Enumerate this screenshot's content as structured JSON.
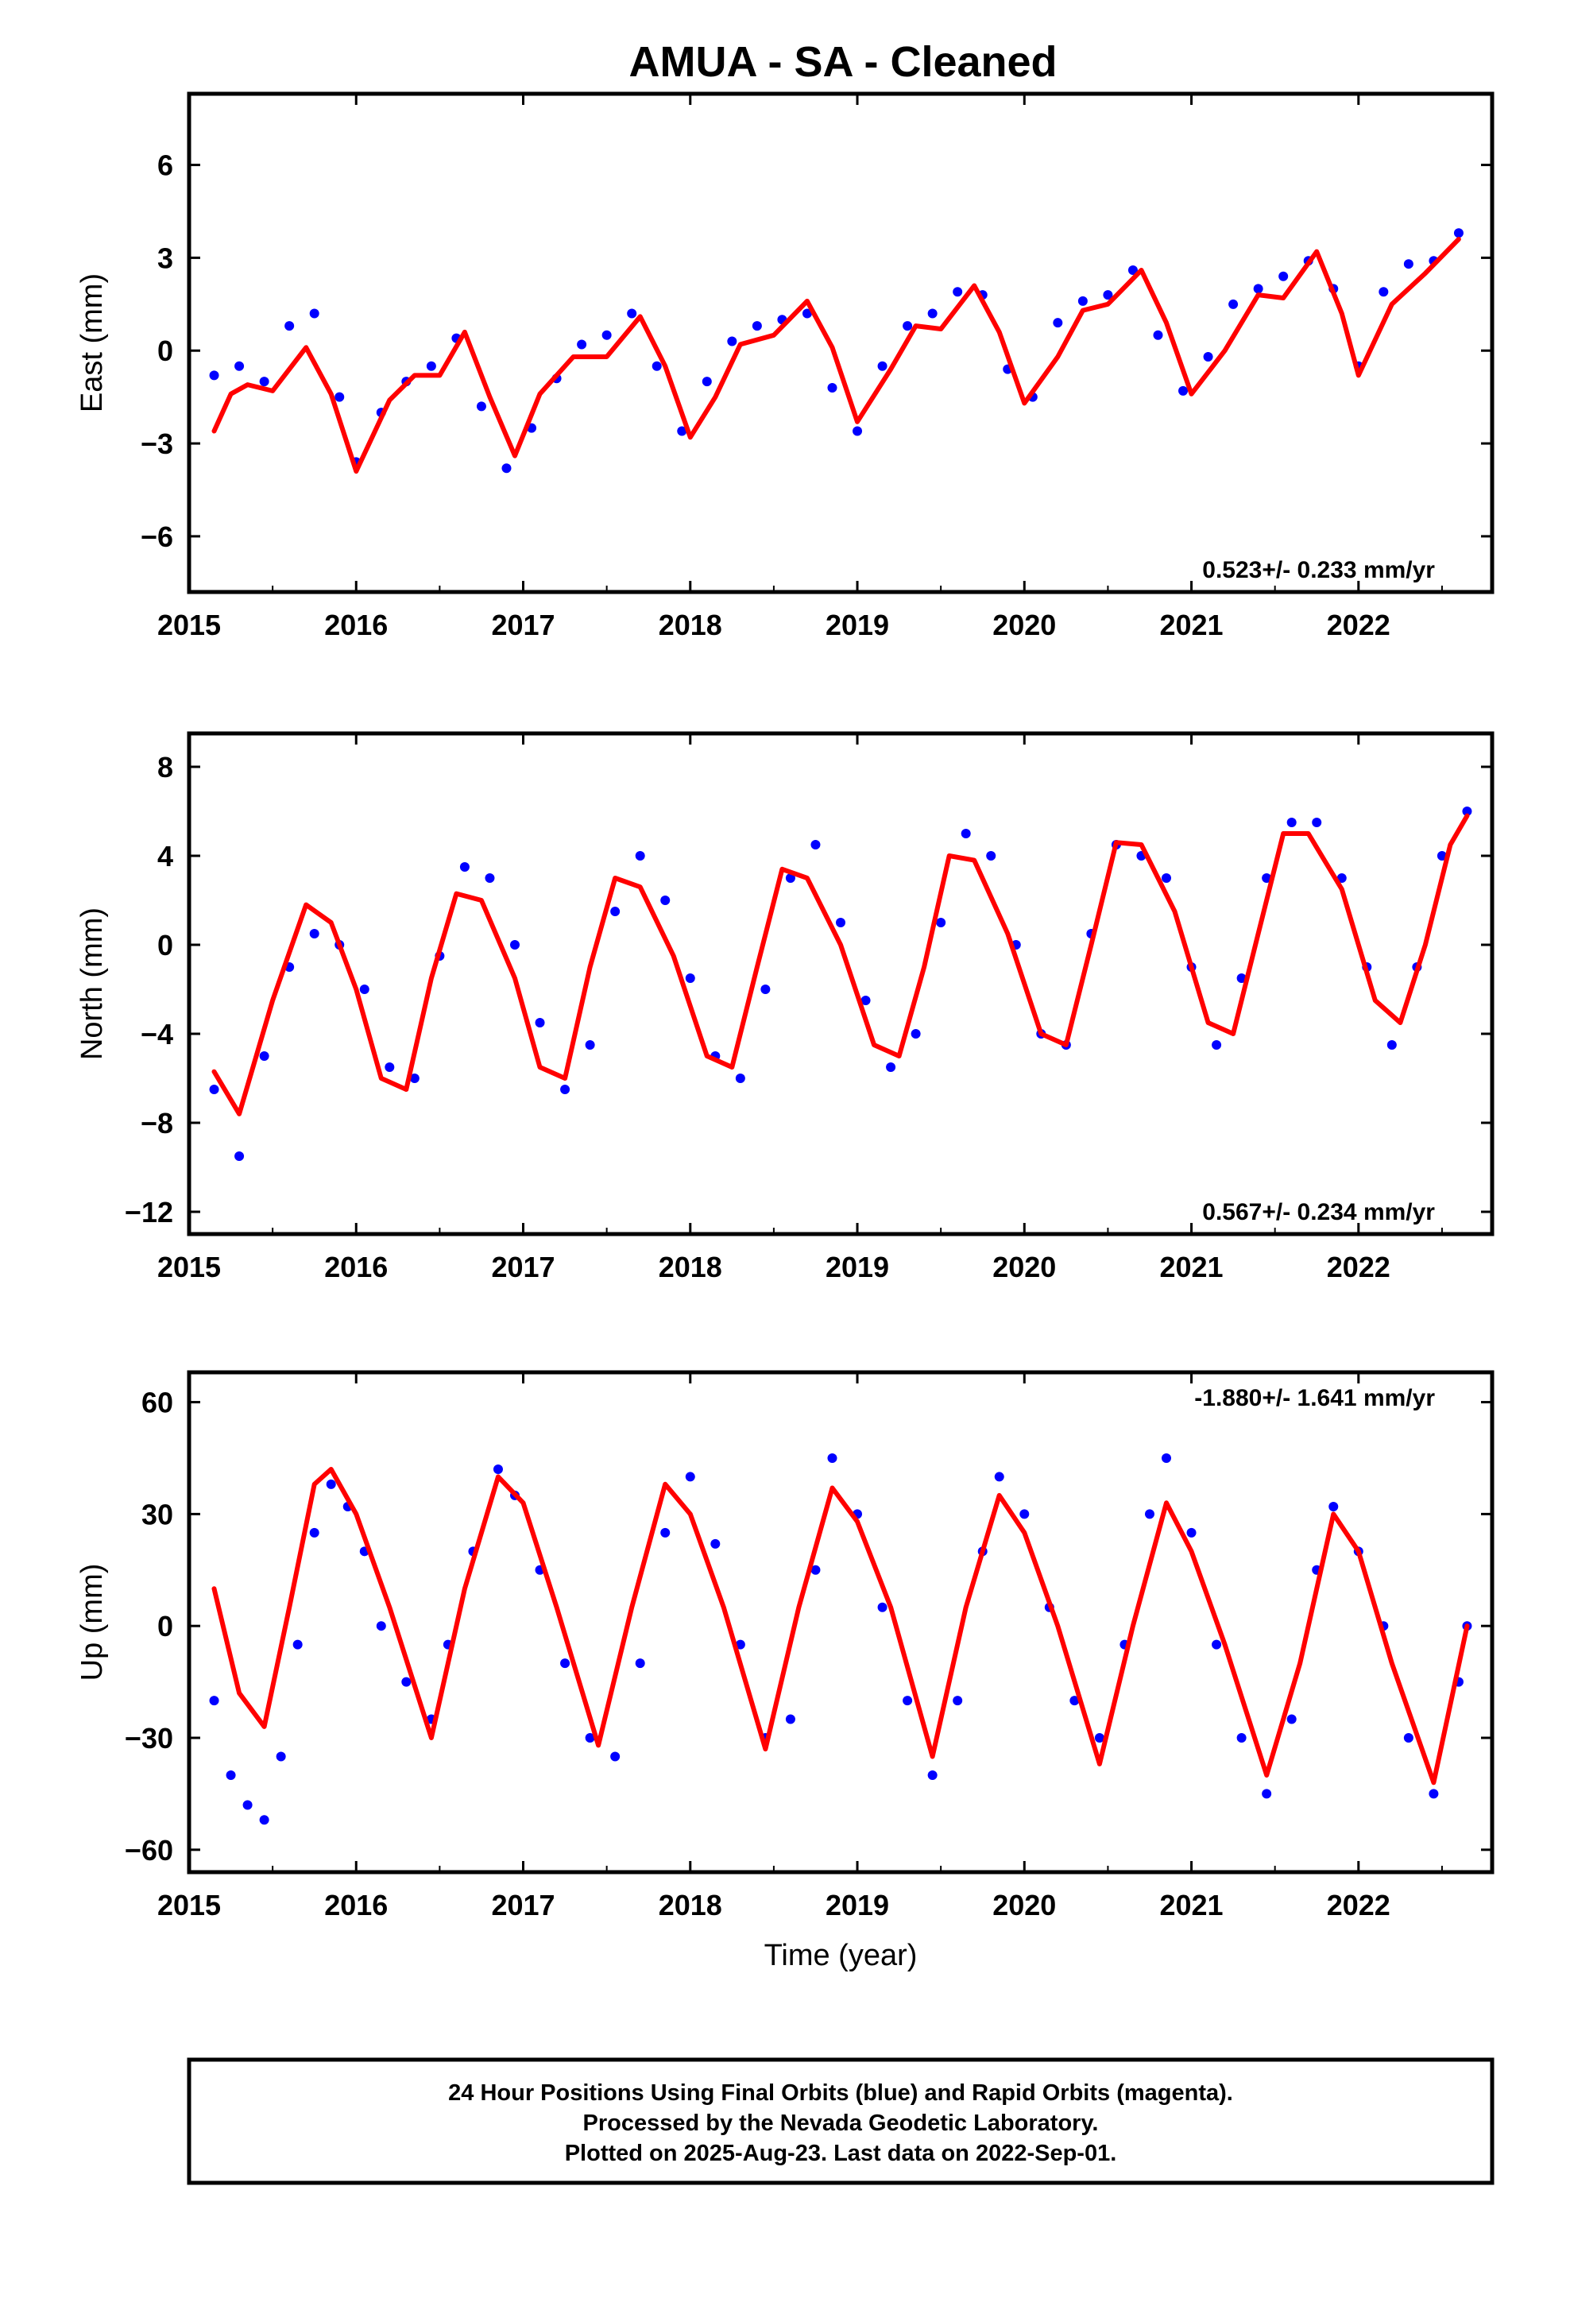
{
  "title": "AMUA  - SA - Cleaned",
  "colors": {
    "points": "#0000ff",
    "fit": "#ff0000",
    "frame": "#000000"
  },
  "chart_data": [
    {
      "type": "scatter",
      "component": "east",
      "ylabel": "East (mm)",
      "xlabel": "",
      "xlim": [
        2015.0,
        2022.8
      ],
      "ylim": [
        -7.8,
        8.3
      ],
      "yticks": [
        "6",
        "3",
        "0",
        "−3",
        "−6"
      ],
      "ytick_values": [
        6,
        3,
        0,
        -3,
        -6
      ],
      "xticks": [
        "2015",
        "2016",
        "2017",
        "2018",
        "2019",
        "2020",
        "2021",
        "2022"
      ],
      "rate": "0.523+/- 0.233 mm/yr",
      "rate_position": "bottom-right",
      "series": [
        {
          "kind": "points",
          "x": [
            2015.15,
            2015.3,
            2015.45,
            2015.6,
            2015.75,
            2015.9,
            2016.0,
            2016.15,
            2016.3,
            2016.45,
            2016.6,
            2016.75,
            2016.9,
            2017.05,
            2017.2,
            2017.35,
            2017.5,
            2017.65,
            2017.8,
            2017.95,
            2018.1,
            2018.25,
            2018.4,
            2018.55,
            2018.7,
            2018.85,
            2019.0,
            2019.15,
            2019.3,
            2019.45,
            2019.6,
            2019.75,
            2019.9,
            2020.05,
            2020.2,
            2020.35,
            2020.5,
            2020.65,
            2020.8,
            2020.95,
            2021.1,
            2021.25,
            2021.4,
            2021.55,
            2021.7,
            2021.85,
            2022.0,
            2022.15,
            2022.3,
            2022.45,
            2022.6
          ],
          "y": [
            -0.8,
            -0.5,
            -1.0,
            0.8,
            1.2,
            -1.5,
            -3.6,
            -2.0,
            -1.0,
            -0.5,
            0.4,
            -1.8,
            -3.8,
            -2.5,
            -0.9,
            0.2,
            0.5,
            1.2,
            -0.5,
            -2.6,
            -1.0,
            0.3,
            0.8,
            1.0,
            1.2,
            -1.2,
            -2.6,
            -0.5,
            0.8,
            1.2,
            1.9,
            1.8,
            -0.6,
            -1.5,
            0.9,
            1.6,
            1.8,
            2.6,
            0.5,
            -1.3,
            -0.2,
            1.5,
            2.0,
            2.4,
            2.9,
            2.0,
            -0.5,
            1.9,
            2.8,
            2.9,
            3.8
          ]
        },
        {
          "kind": "fit",
          "x": [
            2015.15,
            2015.25,
            2015.35,
            2015.5,
            2015.7,
            2015.85,
            2016.0,
            2016.2,
            2016.35,
            2016.5,
            2016.65,
            2016.8,
            2016.95,
            2017.1,
            2017.3,
            2017.5,
            2017.7,
            2017.85,
            2018.0,
            2018.15,
            2018.3,
            2018.5,
            2018.7,
            2018.85,
            2019.0,
            2019.2,
            2019.35,
            2019.5,
            2019.7,
            2019.85,
            2020.0,
            2020.2,
            2020.35,
            2020.5,
            2020.7,
            2020.85,
            2021.0,
            2021.2,
            2021.4,
            2021.55,
            2021.75,
            2021.9,
            2022.0,
            2022.2,
            2022.4,
            2022.6
          ],
          "y": [
            -2.6,
            -1.4,
            -1.1,
            -1.3,
            0.1,
            -1.4,
            -3.9,
            -1.6,
            -0.8,
            -0.8,
            0.6,
            -1.5,
            -3.4,
            -1.4,
            -0.2,
            -0.2,
            1.1,
            -0.5,
            -2.8,
            -1.5,
            0.2,
            0.5,
            1.6,
            0.1,
            -2.3,
            -0.6,
            0.8,
            0.7,
            2.1,
            0.6,
            -1.7,
            -0.2,
            1.3,
            1.5,
            2.6,
            0.9,
            -1.4,
            0.0,
            1.8,
            1.7,
            3.2,
            1.2,
            -0.8,
            1.5,
            2.5,
            3.6
          ]
        }
      ]
    },
    {
      "type": "scatter",
      "component": "north",
      "ylabel": "North (mm)",
      "xlabel": "",
      "xlim": [
        2015.0,
        2022.8
      ],
      "ylim": [
        -13,
        9.5
      ],
      "yticks": [
        "8",
        "4",
        "0",
        "−4",
        "−8",
        "−12"
      ],
      "ytick_values": [
        8,
        4,
        0,
        -4,
        -8,
        -12
      ],
      "xticks": [
        "2015",
        "2016",
        "2017",
        "2018",
        "2019",
        "2020",
        "2021",
        "2022"
      ],
      "rate": "0.567+/- 0.234 mm/yr",
      "rate_position": "bottom-right",
      "series": [
        {
          "kind": "points",
          "x": [
            2015.15,
            2015.3,
            2015.45,
            2015.6,
            2015.75,
            2015.9,
            2016.05,
            2016.2,
            2016.35,
            2016.5,
            2016.65,
            2016.8,
            2016.95,
            2017.1,
            2017.25,
            2017.4,
            2017.55,
            2017.7,
            2017.85,
            2018.0,
            2018.15,
            2018.3,
            2018.45,
            2018.6,
            2018.75,
            2018.9,
            2019.05,
            2019.2,
            2019.35,
            2019.5,
            2019.65,
            2019.8,
            2019.95,
            2020.1,
            2020.25,
            2020.4,
            2020.55,
            2020.7,
            2020.85,
            2021.0,
            2021.15,
            2021.3,
            2021.45,
            2021.6,
            2021.75,
            2021.9,
            2022.05,
            2022.2,
            2022.35,
            2022.5,
            2022.65
          ],
          "y": [
            -6.5,
            -9.5,
            -5.0,
            -1.0,
            0.5,
            0.0,
            -2.0,
            -5.5,
            -6.0,
            -0.5,
            3.5,
            3.0,
            0.0,
            -3.5,
            -6.5,
            -4.5,
            1.5,
            4.0,
            2.0,
            -1.5,
            -5.0,
            -6.0,
            -2.0,
            3.0,
            4.5,
            1.0,
            -2.5,
            -5.5,
            -4.0,
            1.0,
            5.0,
            4.0,
            0.0,
            -4.0,
            -4.5,
            0.5,
            4.5,
            4.0,
            3.0,
            -1.0,
            -4.5,
            -1.5,
            3.0,
            5.5,
            5.5,
            3.0,
            -1.0,
            -4.5,
            -1.0,
            4.0,
            6.0
          ]
        },
        {
          "kind": "fit",
          "x": [
            2015.15,
            2015.3,
            2015.5,
            2015.7,
            2015.85,
            2016.0,
            2016.15,
            2016.3,
            2016.45,
            2016.6,
            2016.75,
            2016.95,
            2017.1,
            2017.25,
            2017.4,
            2017.55,
            2017.7,
            2017.9,
            2018.1,
            2018.25,
            2018.4,
            2018.55,
            2018.7,
            2018.9,
            2019.1,
            2019.25,
            2019.4,
            2019.55,
            2019.7,
            2019.9,
            2020.1,
            2020.25,
            2020.4,
            2020.55,
            2020.7,
            2020.9,
            2021.1,
            2021.25,
            2021.4,
            2021.55,
            2021.7,
            2021.9,
            2022.1,
            2022.25,
            2022.4,
            2022.55,
            2022.65
          ],
          "y": [
            -5.7,
            -7.6,
            -2.5,
            1.8,
            1.0,
            -2.0,
            -6.0,
            -6.5,
            -1.5,
            2.3,
            2.0,
            -1.5,
            -5.5,
            -6.0,
            -1.0,
            3.0,
            2.6,
            -0.5,
            -5.0,
            -5.5,
            -1.0,
            3.4,
            3.0,
            0.0,
            -4.5,
            -5.0,
            -1.0,
            4.0,
            3.8,
            0.5,
            -4.0,
            -4.5,
            0.0,
            4.6,
            4.5,
            1.5,
            -3.5,
            -4.0,
            0.5,
            5.0,
            5.0,
            2.5,
            -2.5,
            -3.5,
            0.0,
            4.5,
            5.8
          ]
        }
      ]
    },
    {
      "type": "scatter",
      "component": "up",
      "ylabel": "Up (mm)",
      "xlabel": "Time (year)",
      "xlim": [
        2015.0,
        2022.8
      ],
      "ylim": [
        -66,
        68
      ],
      "yticks": [
        "60",
        "30",
        "0",
        "−30",
        "−60"
      ],
      "ytick_values": [
        60,
        30,
        0,
        -30,
        -60
      ],
      "xticks": [
        "2015",
        "2016",
        "2017",
        "2018",
        "2019",
        "2020",
        "2021",
        "2022"
      ],
      "rate": "-1.880+/- 1.641 mm/yr",
      "rate_position": "top-right",
      "series": [
        {
          "kind": "points",
          "x": [
            2015.15,
            2015.25,
            2015.35,
            2015.45,
            2015.55,
            2015.65,
            2015.75,
            2015.85,
            2015.95,
            2016.05,
            2016.15,
            2016.3,
            2016.45,
            2016.55,
            2016.7,
            2016.85,
            2016.95,
            2017.1,
            2017.25,
            2017.4,
            2017.55,
            2017.7,
            2017.85,
            2018.0,
            2018.15,
            2018.3,
            2018.45,
            2018.6,
            2018.75,
            2018.85,
            2019.0,
            2019.15,
            2019.3,
            2019.45,
            2019.6,
            2019.75,
            2019.85,
            2020.0,
            2020.15,
            2020.3,
            2020.45,
            2020.6,
            2020.75,
            2020.85,
            2021.0,
            2021.15,
            2021.3,
            2021.45,
            2021.6,
            2021.75,
            2021.85,
            2022.0,
            2022.15,
            2022.3,
            2022.45,
            2022.6,
            2022.65
          ],
          "y": [
            -20,
            -40,
            -48,
            -52,
            -35,
            -5,
            25,
            38,
            32,
            20,
            0,
            -15,
            -25,
            -5,
            20,
            42,
            35,
            15,
            -10,
            -30,
            -35,
            -10,
            25,
            40,
            22,
            -5,
            -30,
            -25,
            15,
            45,
            30,
            5,
            -20,
            -40,
            -20,
            20,
            40,
            30,
            5,
            -20,
            -30,
            -5,
            30,
            45,
            25,
            -5,
            -30,
            -45,
            -25,
            15,
            32,
            20,
            0,
            -30,
            -45,
            -15,
            0
          ]
        },
        {
          "kind": "fit",
          "x": [
            2015.15,
            2015.3,
            2015.45,
            2015.6,
            2015.75,
            2015.85,
            2016.0,
            2016.2,
            2016.45,
            2016.65,
            2016.85,
            2017.0,
            2017.2,
            2017.45,
            2017.65,
            2017.85,
            2018.0,
            2018.2,
            2018.45,
            2018.65,
            2018.85,
            2019.0,
            2019.2,
            2019.45,
            2019.65,
            2019.85,
            2020.0,
            2020.2,
            2020.45,
            2020.65,
            2020.85,
            2021.0,
            2021.2,
            2021.45,
            2021.65,
            2021.85,
            2022.0,
            2022.2,
            2022.45,
            2022.65
          ],
          "y": [
            10,
            -18,
            -27,
            5,
            38,
            42,
            30,
            5,
            -30,
            10,
            40,
            33,
            5,
            -32,
            5,
            38,
            30,
            5,
            -33,
            5,
            37,
            28,
            5,
            -35,
            5,
            35,
            25,
            0,
            -37,
            0,
            33,
            20,
            -5,
            -40,
            -10,
            30,
            20,
            -10,
            -42,
            0
          ]
        }
      ]
    }
  ],
  "caption": [
    "24 Hour Positions Using Final Orbits (blue) and Rapid Orbits (magenta).",
    "Processed by the Nevada Geodetic Laboratory.",
    "Plotted on 2025-Aug-23. Last data on 2022-Sep-01."
  ]
}
